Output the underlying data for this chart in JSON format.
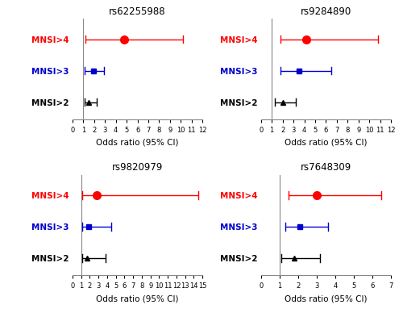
{
  "panels": [
    {
      "title": "rs62255988",
      "xlim": [
        0,
        12
      ],
      "xticks": [
        0,
        1,
        2,
        3,
        4,
        5,
        6,
        7,
        8,
        9,
        10,
        11,
        12
      ],
      "xlabel": "Odds ratio (95% CI)",
      "series": [
        {
          "label": "MNSI>4",
          "value": 4.8,
          "ci_low": 1.2,
          "ci_high": 10.2,
          "color": "#ff0000",
          "marker": "o"
        },
        {
          "label": "MNSI>3",
          "value": 1.9,
          "ci_low": 1.1,
          "ci_high": 2.9,
          "color": "#0000cc",
          "marker": "s"
        },
        {
          "label": "MNSI>2",
          "value": 1.5,
          "ci_low": 1.1,
          "ci_high": 2.2,
          "color": "#000000",
          "marker": "^"
        }
      ]
    },
    {
      "title": "rs9284890",
      "xlim": [
        0,
        12
      ],
      "xticks": [
        0,
        1,
        2,
        3,
        4,
        5,
        6,
        7,
        8,
        9,
        10,
        11,
        12
      ],
      "xlabel": "Odds ratio (95% CI)",
      "series": [
        {
          "label": "MNSI>4",
          "value": 4.2,
          "ci_low": 1.8,
          "ci_high": 10.8,
          "color": "#ff0000",
          "marker": "o"
        },
        {
          "label": "MNSI>3",
          "value": 3.5,
          "ci_low": 1.8,
          "ci_high": 6.5,
          "color": "#0000cc",
          "marker": "s"
        },
        {
          "label": "MNSI>2",
          "value": 2.0,
          "ci_low": 1.3,
          "ci_high": 3.2,
          "color": "#000000",
          "marker": "^"
        }
      ]
    },
    {
      "title": "rs9820979",
      "xlim": [
        0,
        15
      ],
      "xticks": [
        0,
        1,
        2,
        3,
        4,
        5,
        6,
        7,
        8,
        9,
        10,
        11,
        12,
        13,
        14,
        15
      ],
      "xlabel": "Odds ratio (95% CI)",
      "series": [
        {
          "label": "MNSI>4",
          "value": 2.8,
          "ci_low": 1.1,
          "ci_high": 14.5,
          "color": "#ff0000",
          "marker": "o"
        },
        {
          "label": "MNSI>3",
          "value": 1.9,
          "ci_low": 1.1,
          "ci_high": 4.5,
          "color": "#0000cc",
          "marker": "s"
        },
        {
          "label": "MNSI>2",
          "value": 1.7,
          "ci_low": 1.1,
          "ci_high": 3.8,
          "color": "#000000",
          "marker": "^"
        }
      ]
    },
    {
      "title": "rs7648309",
      "xlim": [
        0,
        7
      ],
      "xticks": [
        0,
        1,
        2,
        3,
        4,
        5,
        6,
        7
      ],
      "xlabel": "Odds ratio (95% CI)",
      "series": [
        {
          "label": "MNSI>4",
          "value": 3.0,
          "ci_low": 1.5,
          "ci_high": 6.5,
          "color": "#ff0000",
          "marker": "o"
        },
        {
          "label": "MNSI>3",
          "value": 2.1,
          "ci_low": 1.3,
          "ci_high": 3.6,
          "color": "#0000cc",
          "marker": "s"
        },
        {
          "label": "MNSI>2",
          "value": 1.8,
          "ci_low": 1.1,
          "ci_high": 3.2,
          "color": "#000000",
          "marker": "^"
        }
      ]
    }
  ],
  "background_color": "#ffffff",
  "vline_x": 1,
  "figsize": [
    5.0,
    3.88
  ],
  "dpi": 100
}
